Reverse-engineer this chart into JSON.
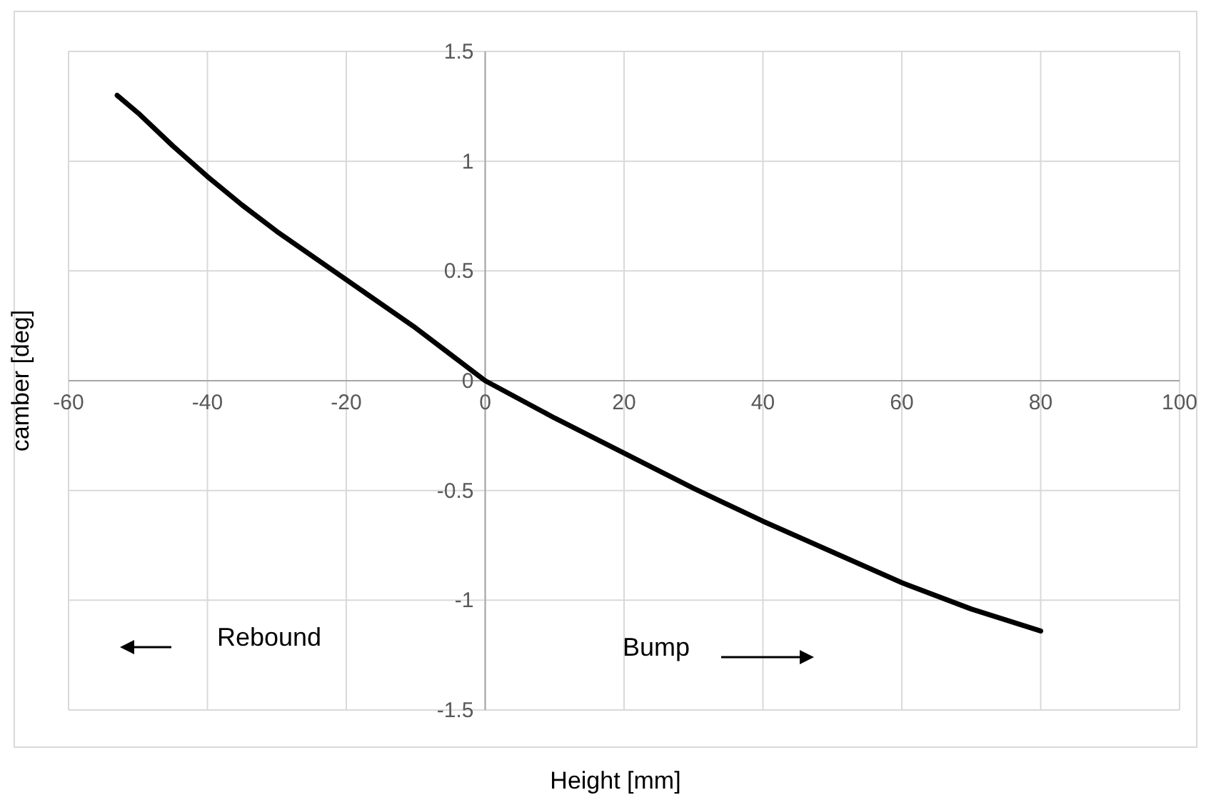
{
  "chart_data": {
    "type": "line",
    "xlabel": "Height [mm]",
    "ylabel": "camber [deg]",
    "xlim": [
      -60,
      100
    ],
    "xticks": [
      -60,
      -40,
      -20,
      0,
      20,
      40,
      60,
      80,
      100
    ],
    "ylim": [
      -1.5,
      1.5
    ],
    "yticks": [
      -1.5,
      -1,
      -0.5,
      0,
      0.5,
      1,
      1.5
    ],
    "grid": true,
    "marker": "none",
    "line_style": "solid",
    "annotations": [
      "Rebound",
      "Bump"
    ],
    "series": [
      {
        "color": "#000000",
        "x": [
          -53,
          -50,
          -45,
          -40,
          -35,
          -30,
          -25,
          -20,
          -15,
          -10,
          -5,
          0,
          10,
          20,
          30,
          40,
          50,
          60,
          70,
          80
        ],
        "values": [
          1.3,
          1.22,
          1.07,
          0.93,
          0.8,
          0.68,
          0.57,
          0.46,
          0.35,
          0.24,
          0.12,
          0,
          -0.17,
          -0.33,
          -0.49,
          -0.64,
          -0.78,
          -0.92,
          -1.04,
          -1.14
        ]
      }
    ]
  }
}
